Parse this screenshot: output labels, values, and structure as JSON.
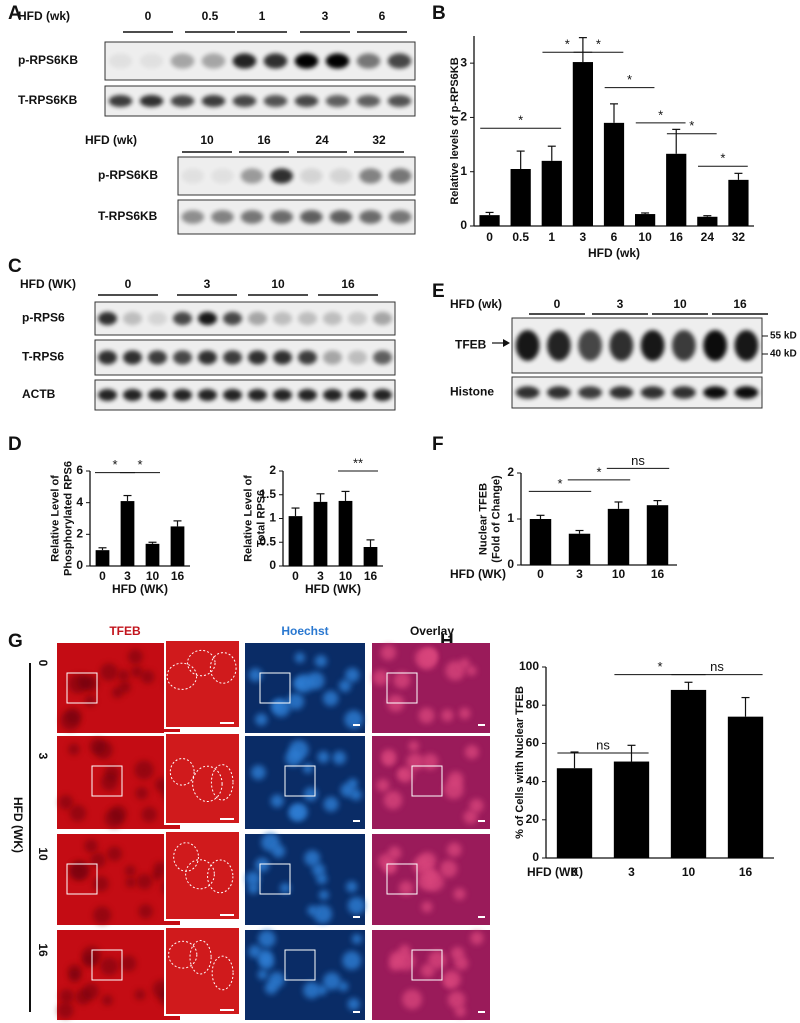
{
  "panel_labels": [
    "A",
    "B",
    "C",
    "D",
    "E",
    "F",
    "G",
    "H"
  ],
  "blot_A1": {
    "header": "HFD (wk)",
    "lanes": [
      "0",
      "0.5",
      "1",
      "3",
      "6"
    ],
    "rows": [
      "p-RPS6KB",
      "T-RPS6KB"
    ]
  },
  "blot_A2": {
    "header": "HFD (wk)",
    "lanes": [
      "10",
      "16",
      "24",
      "32"
    ],
    "rows": [
      "p-RPS6KB",
      "T-RPS6KB"
    ]
  },
  "blot_C": {
    "header": "HFD (WK)",
    "lanes": [
      "0",
      "3",
      "10",
      "16"
    ],
    "rows": [
      "p-RPS6",
      "T-RPS6",
      "ACTB"
    ]
  },
  "blot_E": {
    "header": "HFD (wk)",
    "lanes": [
      "0",
      "3",
      "10",
      "16"
    ],
    "rows": [
      "TFEB",
      "Histone"
    ],
    "markers": [
      "55 kD",
      "40 kD"
    ]
  },
  "images_G": {
    "columns": [
      "TFEB",
      "Hoechst",
      "Overlay"
    ],
    "axis_label": "HFD (WK)",
    "rows": [
      "0",
      "3",
      "10",
      "16"
    ]
  },
  "chart_data": [
    {
      "type": "bar",
      "ylabel": [
        "Relative levels of p-RPS6KB"
      ],
      "xlabel": "HFD (wk)",
      "categories": [
        "0",
        "0.5",
        "1",
        "3",
        "6",
        "10",
        "16",
        "24",
        "32"
      ],
      "values": [
        0.2,
        1.05,
        1.2,
        3.02,
        1.9,
        0.22,
        1.33,
        0.17,
        0.85
      ],
      "errors": [
        0.05,
        0.33,
        0.27,
        0.45,
        0.35,
        0.02,
        0.45,
        0.02,
        0.12
      ],
      "color": "#000000",
      "ylim": [
        0,
        3.5
      ],
      "yticks": [
        0,
        1,
        2,
        3
      ],
      "annotations": [
        "*",
        "*",
        "*",
        "*",
        "*",
        "*",
        "*"
      ]
    },
    {
      "type": "bar",
      "ylabel": [
        "Relative Level of",
        "Phosphorylated RPS6"
      ],
      "xlabel": "HFD (WK)",
      "categories": [
        "0",
        "3",
        "10",
        "16"
      ],
      "values": [
        1.0,
        4.1,
        1.4,
        2.5
      ],
      "errors": [
        0.15,
        0.35,
        0.1,
        0.35
      ],
      "color": "#000000",
      "ylim": [
        0,
        6
      ],
      "yticks": [
        0,
        2,
        4,
        6
      ],
      "annotations": [
        "*",
        "*"
      ]
    },
    {
      "type": "bar",
      "ylabel": [
        "Relative Level of",
        "Total RPS6"
      ],
      "xlabel": "HFD (WK)",
      "categories": [
        "0",
        "3",
        "10",
        "16"
      ],
      "values": [
        1.05,
        1.35,
        1.37,
        0.4
      ],
      "errors": [
        0.17,
        0.17,
        0.2,
        0.15
      ],
      "color": "#000000",
      "ylim": [
        0,
        2
      ],
      "yticks": [
        0,
        0.5,
        1,
        1.5,
        2
      ],
      "annotations": [
        "**"
      ]
    },
    {
      "type": "bar",
      "ylabel": [
        "Nuclear TFEB",
        "(Fold of Change)"
      ],
      "xlabel": "HFD (WK)",
      "categories": [
        "0",
        "3",
        "10",
        "16"
      ],
      "values": [
        1.0,
        0.68,
        1.22,
        1.3
      ],
      "errors": [
        0.08,
        0.07,
        0.15,
        0.1
      ],
      "color": "#000000",
      "ylim": [
        0,
        2
      ],
      "yticks": [
        0,
        1,
        2
      ],
      "annotations": [
        "*",
        "*",
        "ns"
      ]
    },
    {
      "type": "bar",
      "ylabel": [
        "% of Cells with Nuclear TFEB"
      ],
      "xlabel": "HFD (WK)",
      "categories": [
        "0",
        "3",
        "10",
        "16"
      ],
      "values": [
        47,
        50.5,
        88,
        74
      ],
      "errors": [
        8.5,
        8.5,
        4,
        10
      ],
      "color": "#000000",
      "ylim": [
        0,
        100
      ],
      "yticks": [
        0,
        20,
        40,
        60,
        80,
        100
      ],
      "annotations": [
        "ns",
        "*",
        "ns"
      ]
    }
  ]
}
